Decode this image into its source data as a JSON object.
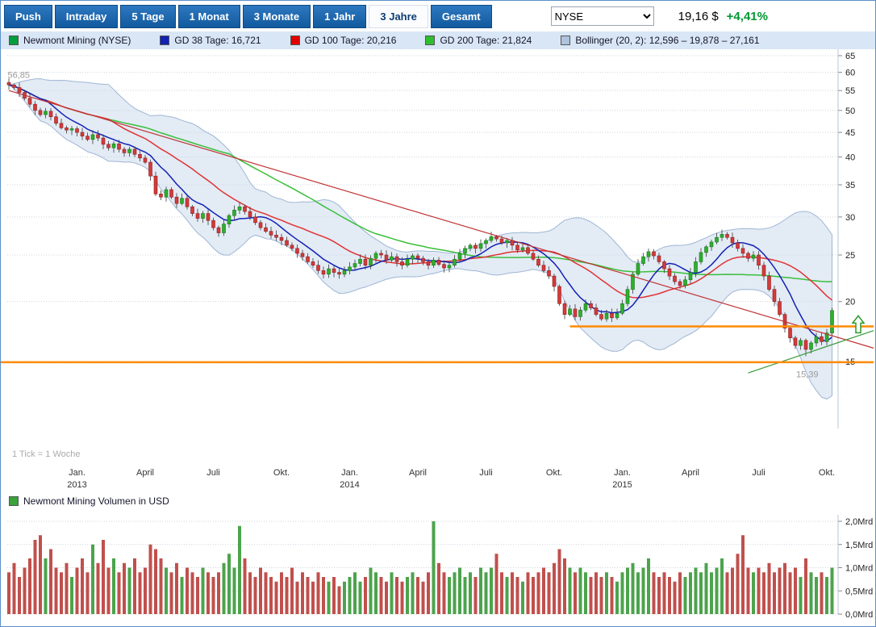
{
  "toolbar": {
    "buttons": [
      {
        "label": "Push",
        "active": false
      },
      {
        "label": "Intraday",
        "active": false
      },
      {
        "label": "5 Tage",
        "active": false
      },
      {
        "label": "1 Monat",
        "active": false
      },
      {
        "label": "3 Monate",
        "active": false
      },
      {
        "label": "1 Jahr",
        "active": false
      },
      {
        "label": "3 Jahre",
        "active": true
      },
      {
        "label": "Gesamt",
        "active": false
      }
    ],
    "exchange_select": {
      "value": "NYSE"
    },
    "price_value": "19,16 $",
    "price_change": "+4,41%",
    "price_change_color": "#009933"
  },
  "legend": {
    "items": [
      {
        "label": "Newmont Mining (NYSE)",
        "color": "#009e3c"
      },
      {
        "label": "GD 38 Tage: 16,721",
        "color": "#1222b4"
      },
      {
        "label": "GD 100 Tage: 20,216",
        "color": "#e00000"
      },
      {
        "label": "GD 200 Tage: 21,824",
        "color": "#2fbe2f"
      },
      {
        "label": "Bollinger (20, 2): 12,596 – 19,878 – 27,161",
        "color": "#aec3dd"
      }
    ]
  },
  "chart_data": {
    "type": "candlestick",
    "title": "Newmont Mining (NYSE)",
    "interval": "weekly",
    "tick_note": "1 Tick = 1 Woche",
    "y_axis": {
      "scale": "log",
      "unit": "$",
      "ticks": [
        65,
        60,
        55,
        50,
        45,
        40,
        35,
        30,
        25,
        20,
        15
      ]
    },
    "x_axis": {
      "month_ticks": [
        {
          "label": "Jan.",
          "week": 13,
          "year": "2013"
        },
        {
          "label": "April",
          "week": 26
        },
        {
          "label": "Juli",
          "week": 39
        },
        {
          "label": "Okt.",
          "week": 52
        },
        {
          "label": "Jan.",
          "week": 65,
          "year": "2014"
        },
        {
          "label": "April",
          "week": 78
        },
        {
          "label": "Juli",
          "week": 91
        },
        {
          "label": "Okt.",
          "week": 104
        },
        {
          "label": "Jan.",
          "week": 117,
          "year": "2015"
        },
        {
          "label": "April",
          "week": 130
        },
        {
          "label": "Juli",
          "week": 143
        },
        {
          "label": "Okt.",
          "week": 156
        }
      ]
    },
    "weekly_closes": [
      56.5,
      55.8,
      54.5,
      53.0,
      51.5,
      50.0,
      49.0,
      49.8,
      48.5,
      47.0,
      46.0,
      45.5,
      45.8,
      45.0,
      44.2,
      43.5,
      44.5,
      43.8,
      42.5,
      41.8,
      42.6,
      41.5,
      40.8,
      41.5,
      40.5,
      39.8,
      39.0,
      36.5,
      33.5,
      33.0,
      34.2,
      33.0,
      32.0,
      32.8,
      31.5,
      30.5,
      29.8,
      30.5,
      29.5,
      28.5,
      27.8,
      29.0,
      30.2,
      31.0,
      31.5,
      30.8,
      30.0,
      29.2,
      28.5,
      28.0,
      27.5,
      27.2,
      26.8,
      26.2,
      25.8,
      25.2,
      24.8,
      24.2,
      23.8,
      23.2,
      22.8,
      23.4,
      23.0,
      22.8,
      23.2,
      23.6,
      24.0,
      24.5,
      23.8,
      24.6,
      25.2,
      25.0,
      24.4,
      24.8,
      24.2,
      23.8,
      24.5,
      24.9,
      24.6,
      24.2,
      23.8,
      24.4,
      23.9,
      23.5,
      23.8,
      24.5,
      25.2,
      25.8,
      26.2,
      25.8,
      26.4,
      26.8,
      27.3,
      27.0,
      26.5,
      26.8,
      26.2,
      25.6,
      25.9,
      25.2,
      24.5,
      23.8,
      23.2,
      22.6,
      21.5,
      19.8,
      18.8,
      19.3,
      18.6,
      19.2,
      19.8,
      19.4,
      18.8,
      18.4,
      18.9,
      18.5,
      18.9,
      19.8,
      21.2,
      22.8,
      24.0,
      24.8,
      25.4,
      24.9,
      24.2,
      23.4,
      22.6,
      22.0,
      21.6,
      22.2,
      23.0,
      24.2,
      25.3,
      26.0,
      26.6,
      27.2,
      27.6,
      27.2,
      26.5,
      25.8,
      25.2,
      24.6,
      25.0,
      23.8,
      22.6,
      21.2,
      20.0,
      18.8,
      17.6,
      16.8,
      16.2,
      16.6,
      15.9,
      16.4,
      16.9,
      16.5,
      17.2,
      19.16
    ],
    "period_high": {
      "value": 56.85,
      "label": "56,85",
      "week": 1
    },
    "period_low": {
      "value": 15.39,
      "label": "15,39",
      "week": 152
    },
    "indicators": {
      "gd38": {
        "label": "GD 38 Tage",
        "value_text": "16,721",
        "color": "#1222b4",
        "window_weeks": 8
      },
      "gd100": {
        "label": "GD 100 Tage",
        "value_text": "20,216",
        "color": "#e03232",
        "window_weeks": 20
      },
      "gd200": {
        "label": "GD 200 Tage",
        "value_text": "21,824",
        "color": "#3abf3a",
        "window_weeks": 43
      },
      "bollinger": {
        "label": "Bollinger (20, 2)",
        "values_text": "12,596 – 19,878 – 27,161",
        "band_fill": "#c7d7ec",
        "edge_color": "#9fb6d4",
        "window_weeks": 20,
        "mult": 2
      }
    },
    "overlays": {
      "trend_red": {
        "color": "#c03434",
        "from": {
          "week": 0,
          "price": 55.0
        },
        "to": {
          "week": 165,
          "price": 16.0
        }
      },
      "trend_green": {
        "color": "#3a9a3a",
        "from": {
          "week": 141,
          "price": 14.2
        },
        "to": {
          "week": 165,
          "price": 17.4
        }
      },
      "support_lines": [
        {
          "price": 17.75,
          "from_week": 107,
          "color": "#ff8a00"
        },
        {
          "price": 14.95,
          "from_week": -2,
          "color": "#ff8a00"
        }
      ],
      "breakout_arrow": {
        "week": 162,
        "price": 17.9,
        "color": "#2a9a2a"
      }
    },
    "volume_panel": {
      "label": "Newmont Mining Volumen in USD",
      "color": "#3aa33a",
      "unit": "Mrd",
      "y_ticks": [
        {
          "label": "2,0Mrd",
          "value": 2.0
        },
        {
          "label": "1,5Mrd",
          "value": 1.5
        },
        {
          "label": "1,0Mrd",
          "value": 1.0
        },
        {
          "label": "0,5Mrd",
          "value": 0.5
        },
        {
          "label": "0,0Mrd",
          "value": 0.0
        }
      ],
      "weekly_volumes_mrd": [
        0.9,
        1.1,
        0.8,
        1.0,
        1.2,
        1.6,
        1.7,
        1.2,
        1.4,
        1.0,
        0.9,
        1.1,
        0.8,
        1.0,
        1.2,
        0.9,
        1.5,
        1.1,
        1.6,
        1.0,
        1.2,
        0.9,
        1.1,
        1.0,
        1.2,
        0.9,
        1.0,
        1.5,
        1.4,
        1.2,
        1.0,
        0.9,
        1.1,
        0.8,
        1.0,
        0.9,
        0.8,
        1.0,
        0.9,
        0.8,
        0.9,
        1.1,
        1.3,
        1.0,
        1.9,
        1.2,
        0.9,
        0.8,
        1.0,
        0.9,
        0.8,
        0.7,
        0.9,
        0.8,
        1.0,
        0.7,
        0.9,
        0.8,
        0.7,
        0.9,
        0.8,
        0.7,
        0.8,
        0.6,
        0.7,
        0.8,
        0.9,
        0.7,
        0.8,
        1.0,
        0.9,
        0.8,
        0.7,
        0.9,
        0.8,
        0.7,
        0.8,
        0.9,
        0.8,
        0.7,
        0.9,
        2.0,
        1.1,
        0.9,
        0.8,
        0.9,
        1.0,
        0.8,
        0.9,
        0.8,
        1.0,
        0.9,
        1.0,
        1.3,
        0.9,
        0.8,
        0.9,
        0.8,
        0.7,
        0.9,
        0.8,
        0.9,
        1.0,
        0.9,
        1.1,
        1.4,
        1.2,
        1.0,
        0.9,
        1.0,
        0.9,
        0.8,
        0.9,
        0.8,
        0.9,
        0.8,
        0.7,
        0.9,
        1.0,
        1.1,
        0.9,
        1.0,
        1.2,
        0.9,
        0.8,
        0.9,
        0.8,
        0.7,
        0.9,
        0.8,
        0.9,
        1.0,
        0.9,
        1.1,
        0.9,
        1.0,
        1.2,
        0.9,
        1.0,
        1.3,
        1.7,
        1.0,
        0.9,
        1.0,
        0.9,
        1.1,
        0.9,
        1.0,
        1.1,
        0.9,
        1.0,
        0.8,
        1.2,
        0.9,
        0.8,
        0.9,
        0.8,
        1.0
      ]
    },
    "colors": {
      "candle_up": "#2fae2f",
      "candle_up_border": "#157a15",
      "candle_down": "#d23b3b",
      "candle_down_border": "#8f1f1f",
      "vol_up": "#4ca34c",
      "vol_down": "#c0504d"
    }
  }
}
